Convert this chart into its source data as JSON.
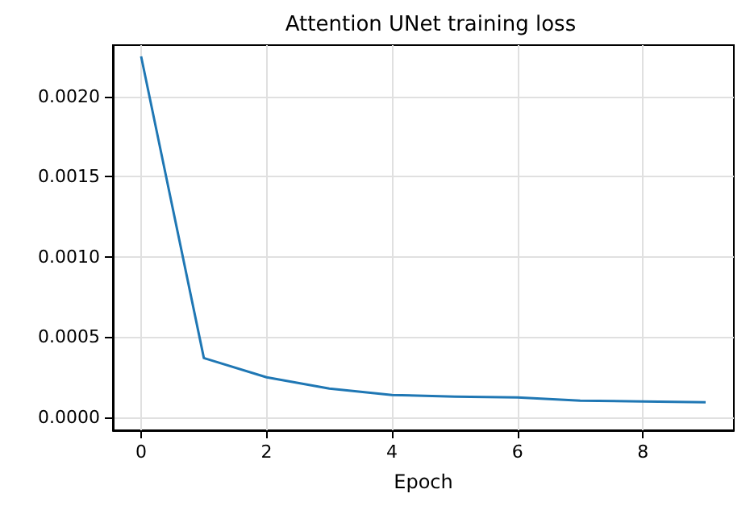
{
  "chart_data": {
    "type": "line",
    "title": "Attention UNet training loss",
    "xlabel": "Epoch",
    "x": [
      0,
      1,
      2,
      3,
      4,
      5,
      6,
      7,
      8,
      9
    ],
    "series": [
      {
        "color": "#1f77b4",
        "values": [
          0.00225,
          0.00037,
          0.00025,
          0.00018,
          0.00014,
          0.00013,
          0.000125,
          0.000105,
          0.0001,
          9.5e-05
        ]
      }
    ],
    "xlim": [
      -0.45,
      9.45
    ],
    "xticks": [
      0,
      2,
      4,
      6,
      8
    ],
    "ylim": [
      -8e-05,
      0.00232
    ],
    "yticks": [
      {
        "value": 0,
        "label": "0.0000"
      },
      {
        "value": 0.0005,
        "label": "0.0005"
      },
      {
        "value": 0.001,
        "label": "0.0010"
      },
      {
        "value": 0.0015,
        "label": "0.0015"
      },
      {
        "value": 0.002,
        "label": "0.0020"
      }
    ],
    "grid": true,
    "marker": "none",
    "line_style": "solid"
  }
}
